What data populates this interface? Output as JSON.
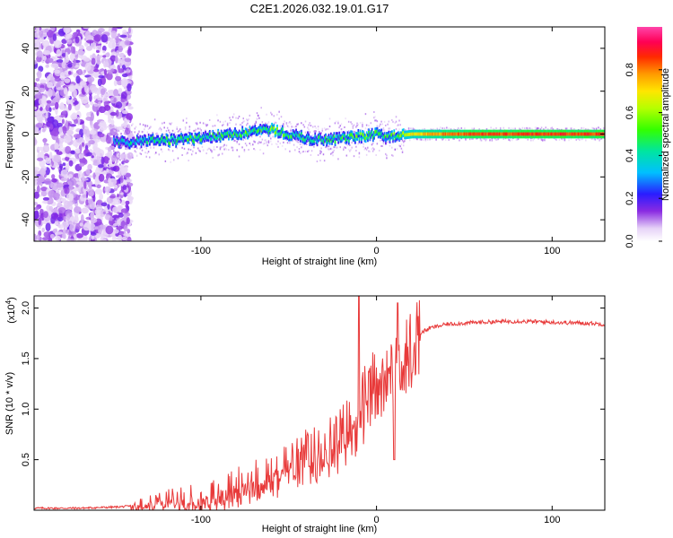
{
  "chart_data": [
    {
      "type": "heatmap",
      "title": "C2E1.2026.032.19.01.G17",
      "xlabel": "Height of straight line (km)",
      "ylabel": "Frequency (Hz)",
      "xlim": [
        -195,
        130
      ],
      "ylim": [
        -50,
        50
      ],
      "xticks": [
        -100,
        0,
        100
      ],
      "yticks": [
        -40,
        -20,
        0,
        20,
        40
      ],
      "colorbar": {
        "label": "Normalized spectral amplitude",
        "range": [
          0,
          1
        ],
        "ticks": [
          "0.0",
          "0.2",
          "0.4",
          "0.6",
          "0.8"
        ],
        "tick_values": [
          0,
          0.2,
          0.4,
          0.6,
          0.8
        ]
      },
      "ridge": {
        "description_points_x": [
          -145,
          -130,
          -115,
          -100,
          -90,
          -80,
          -70,
          -60,
          -50,
          -40,
          -30,
          -20,
          -10,
          0,
          5,
          10,
          20,
          40,
          60,
          80,
          100,
          130
        ],
        "freq_hz": [
          -4,
          -3,
          -3,
          -2,
          -1,
          0,
          1,
          2,
          0,
          -2,
          -3,
          -2,
          -1,
          0,
          -2,
          -1,
          0,
          0,
          0,
          0,
          0,
          0
        ],
        "amplitude": [
          0.35,
          0.4,
          0.45,
          0.45,
          0.45,
          0.45,
          0.5,
          0.5,
          0.45,
          0.45,
          0.4,
          0.45,
          0.5,
          0.5,
          0.4,
          0.5,
          0.7,
          0.8,
          0.85,
          0.85,
          0.85,
          0.85
        ]
      },
      "noise_region_x": [
        -195,
        -140
      ]
    },
    {
      "type": "line",
      "xlabel": "Height of straight line (km)",
      "ylabel": "SNR (10 * v/v)",
      "y_multiplier": "(x10",
      "y_multiplier_exp": "4",
      "y_multiplier_close": ")",
      "xlim": [
        -195,
        130
      ],
      "ylim": [
        0,
        2.12
      ],
      "xticks": [
        -100,
        0,
        100
      ],
      "yticks": [
        0.5,
        1.0,
        1.5,
        2.0
      ],
      "ytick_labels": [
        "0.5",
        "1.0",
        "1.5",
        "2.0"
      ],
      "color": "#e83a3a",
      "series": [
        {
          "name": "SNR",
          "x": [
            -195,
            -170,
            -150,
            -140,
            -130,
            -120,
            -110,
            -100,
            -90,
            -80,
            -70,
            -60,
            -50,
            -40,
            -30,
            -20,
            -15,
            -10,
            -5,
            0,
            5,
            10,
            15,
            20,
            25,
            30,
            40,
            50,
            60,
            80,
            100,
            120,
            130
          ],
          "values": [
            0.02,
            0.02,
            0.03,
            0.04,
            0.08,
            0.12,
            0.12,
            0.14,
            0.18,
            0.24,
            0.32,
            0.38,
            0.45,
            0.55,
            0.65,
            0.75,
            0.85,
            1.0,
            1.15,
            1.3,
            1.45,
            1.55,
            1.6,
            1.7,
            1.75,
            1.8,
            1.84,
            1.85,
            1.86,
            1.87,
            1.86,
            1.85,
            1.84
          ]
        }
      ]
    }
  ],
  "layout_text": {
    "page_title": "C2E1.2026.032.19.01.G17"
  }
}
